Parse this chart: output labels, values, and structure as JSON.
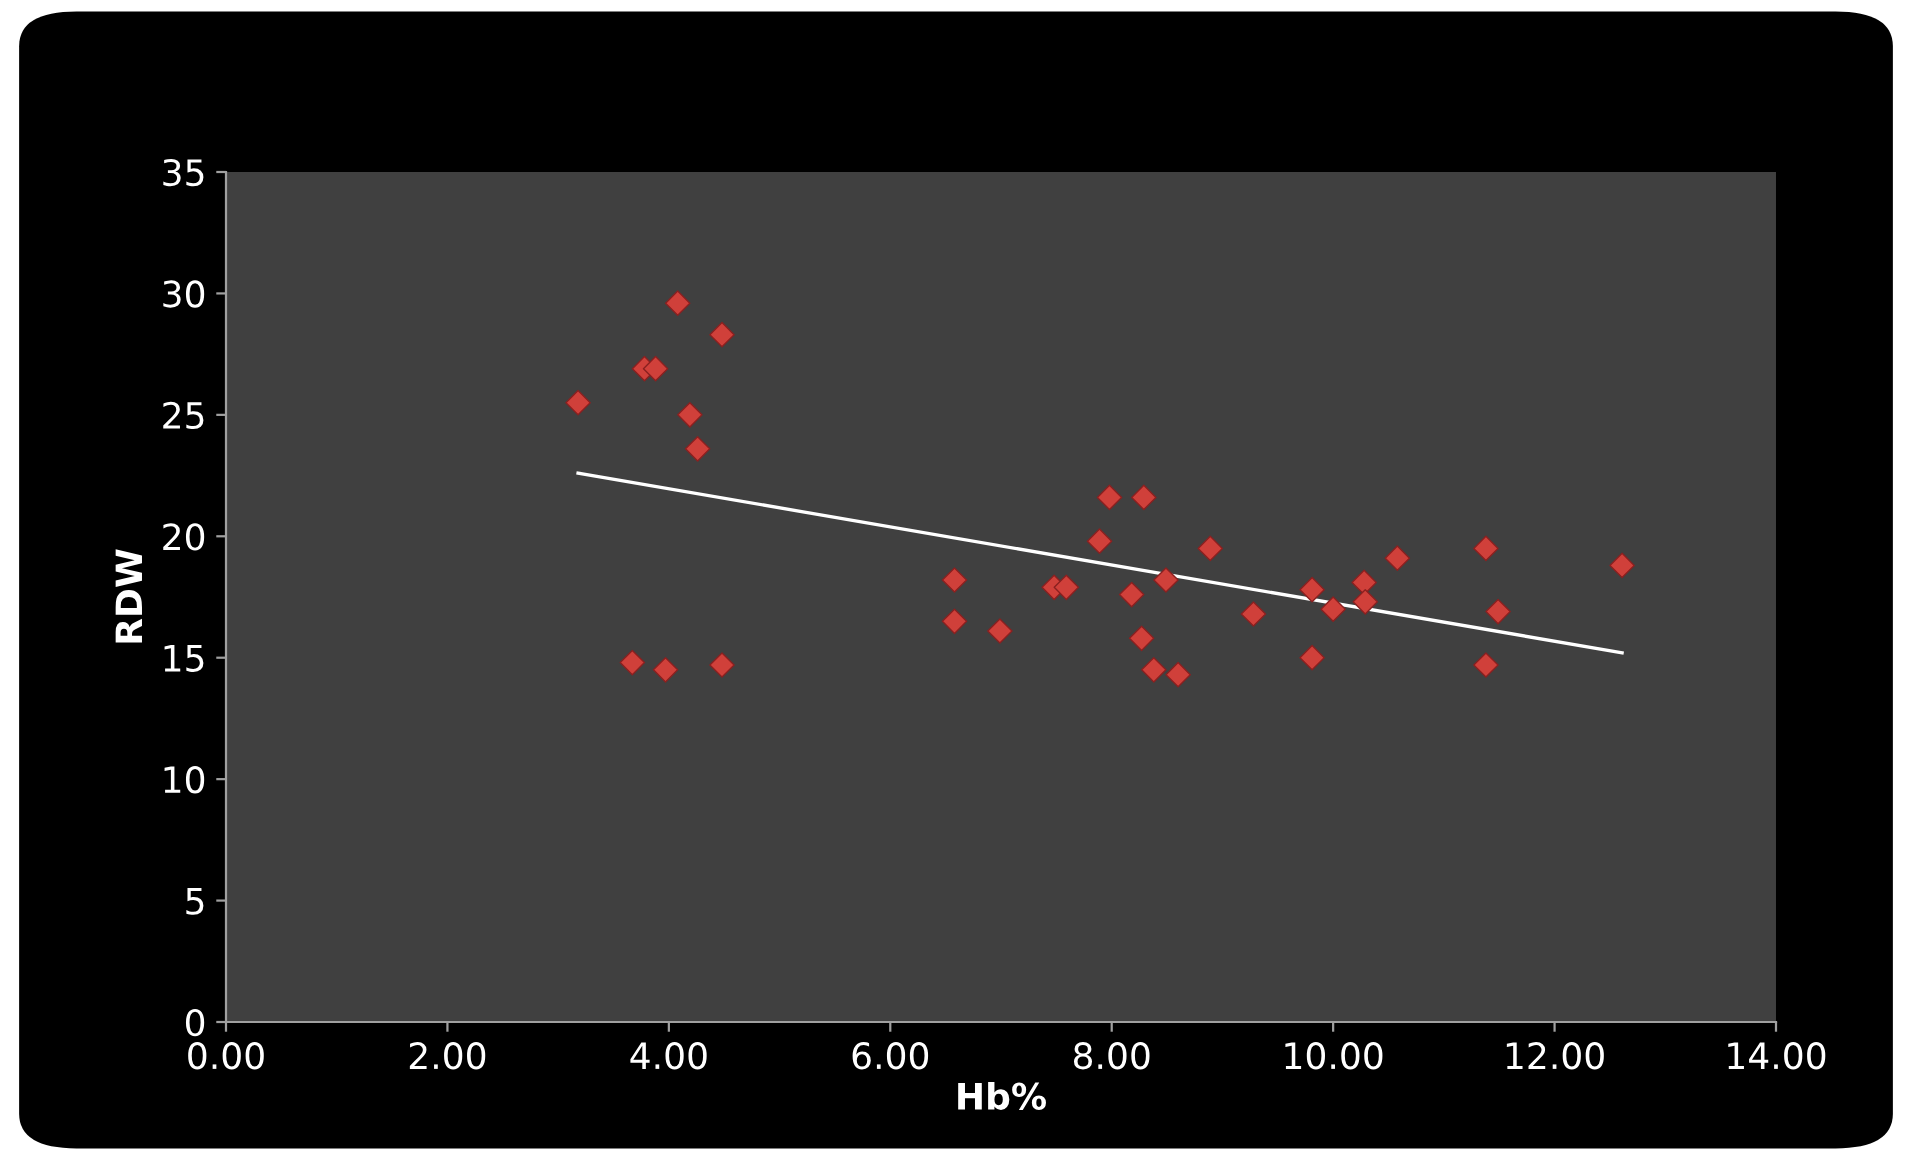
{
  "chart_data": {
    "type": "scatter",
    "xlabel": "Hb%",
    "ylabel": "RDW",
    "grid": false,
    "legend": false,
    "xlim": [
      0,
      14
    ],
    "ylim": [
      0,
      35
    ],
    "xticks": [
      {
        "value": 0,
        "label": "0.00"
      },
      {
        "value": 2,
        "label": "2.00"
      },
      {
        "value": 4,
        "label": "4.00"
      },
      {
        "value": 6,
        "label": "6.00"
      },
      {
        "value": 8,
        "label": "8.00"
      },
      {
        "value": 10,
        "label": "10.00"
      },
      {
        "value": 12,
        "label": "12.00"
      },
      {
        "value": 14,
        "label": "14.00"
      }
    ],
    "yticks": [
      0,
      5,
      10,
      15,
      20,
      25,
      30,
      35
    ],
    "series": [
      {
        "color": "#d0403a",
        "marker": "diamond",
        "x": [
          3.18,
          4.08,
          4.48,
          3.78,
          3.88,
          4.19,
          4.26,
          3.67,
          3.97,
          4.48,
          6.58,
          6.58,
          6.99,
          7.48,
          7.59,
          7.98,
          8.29,
          7.89,
          8.18,
          8.49,
          8.27,
          8.38,
          8.6,
          8.89,
          9.28,
          9.81,
          9.81,
          10.0,
          10.28,
          10.29,
          10.58,
          11.38,
          11.38,
          11.49,
          12.61
        ],
        "values": [
          25.5,
          29.6,
          28.3,
          26.9,
          26.9,
          25.0,
          23.6,
          14.8,
          14.5,
          14.7,
          18.2,
          16.5,
          16.1,
          17.9,
          17.9,
          21.6,
          21.6,
          19.8,
          17.6,
          18.2,
          15.8,
          14.5,
          14.3,
          19.5,
          16.8,
          15.0,
          17.8,
          17.0,
          18.1,
          17.3,
          19.1,
          19.5,
          14.7,
          16.9,
          18.8
        ]
      },
      {
        "type": "line",
        "color": "#ffffff",
        "x": [
          3.18,
          12.61
        ],
        "values": [
          22.6,
          15.2
        ]
      }
    ]
  }
}
